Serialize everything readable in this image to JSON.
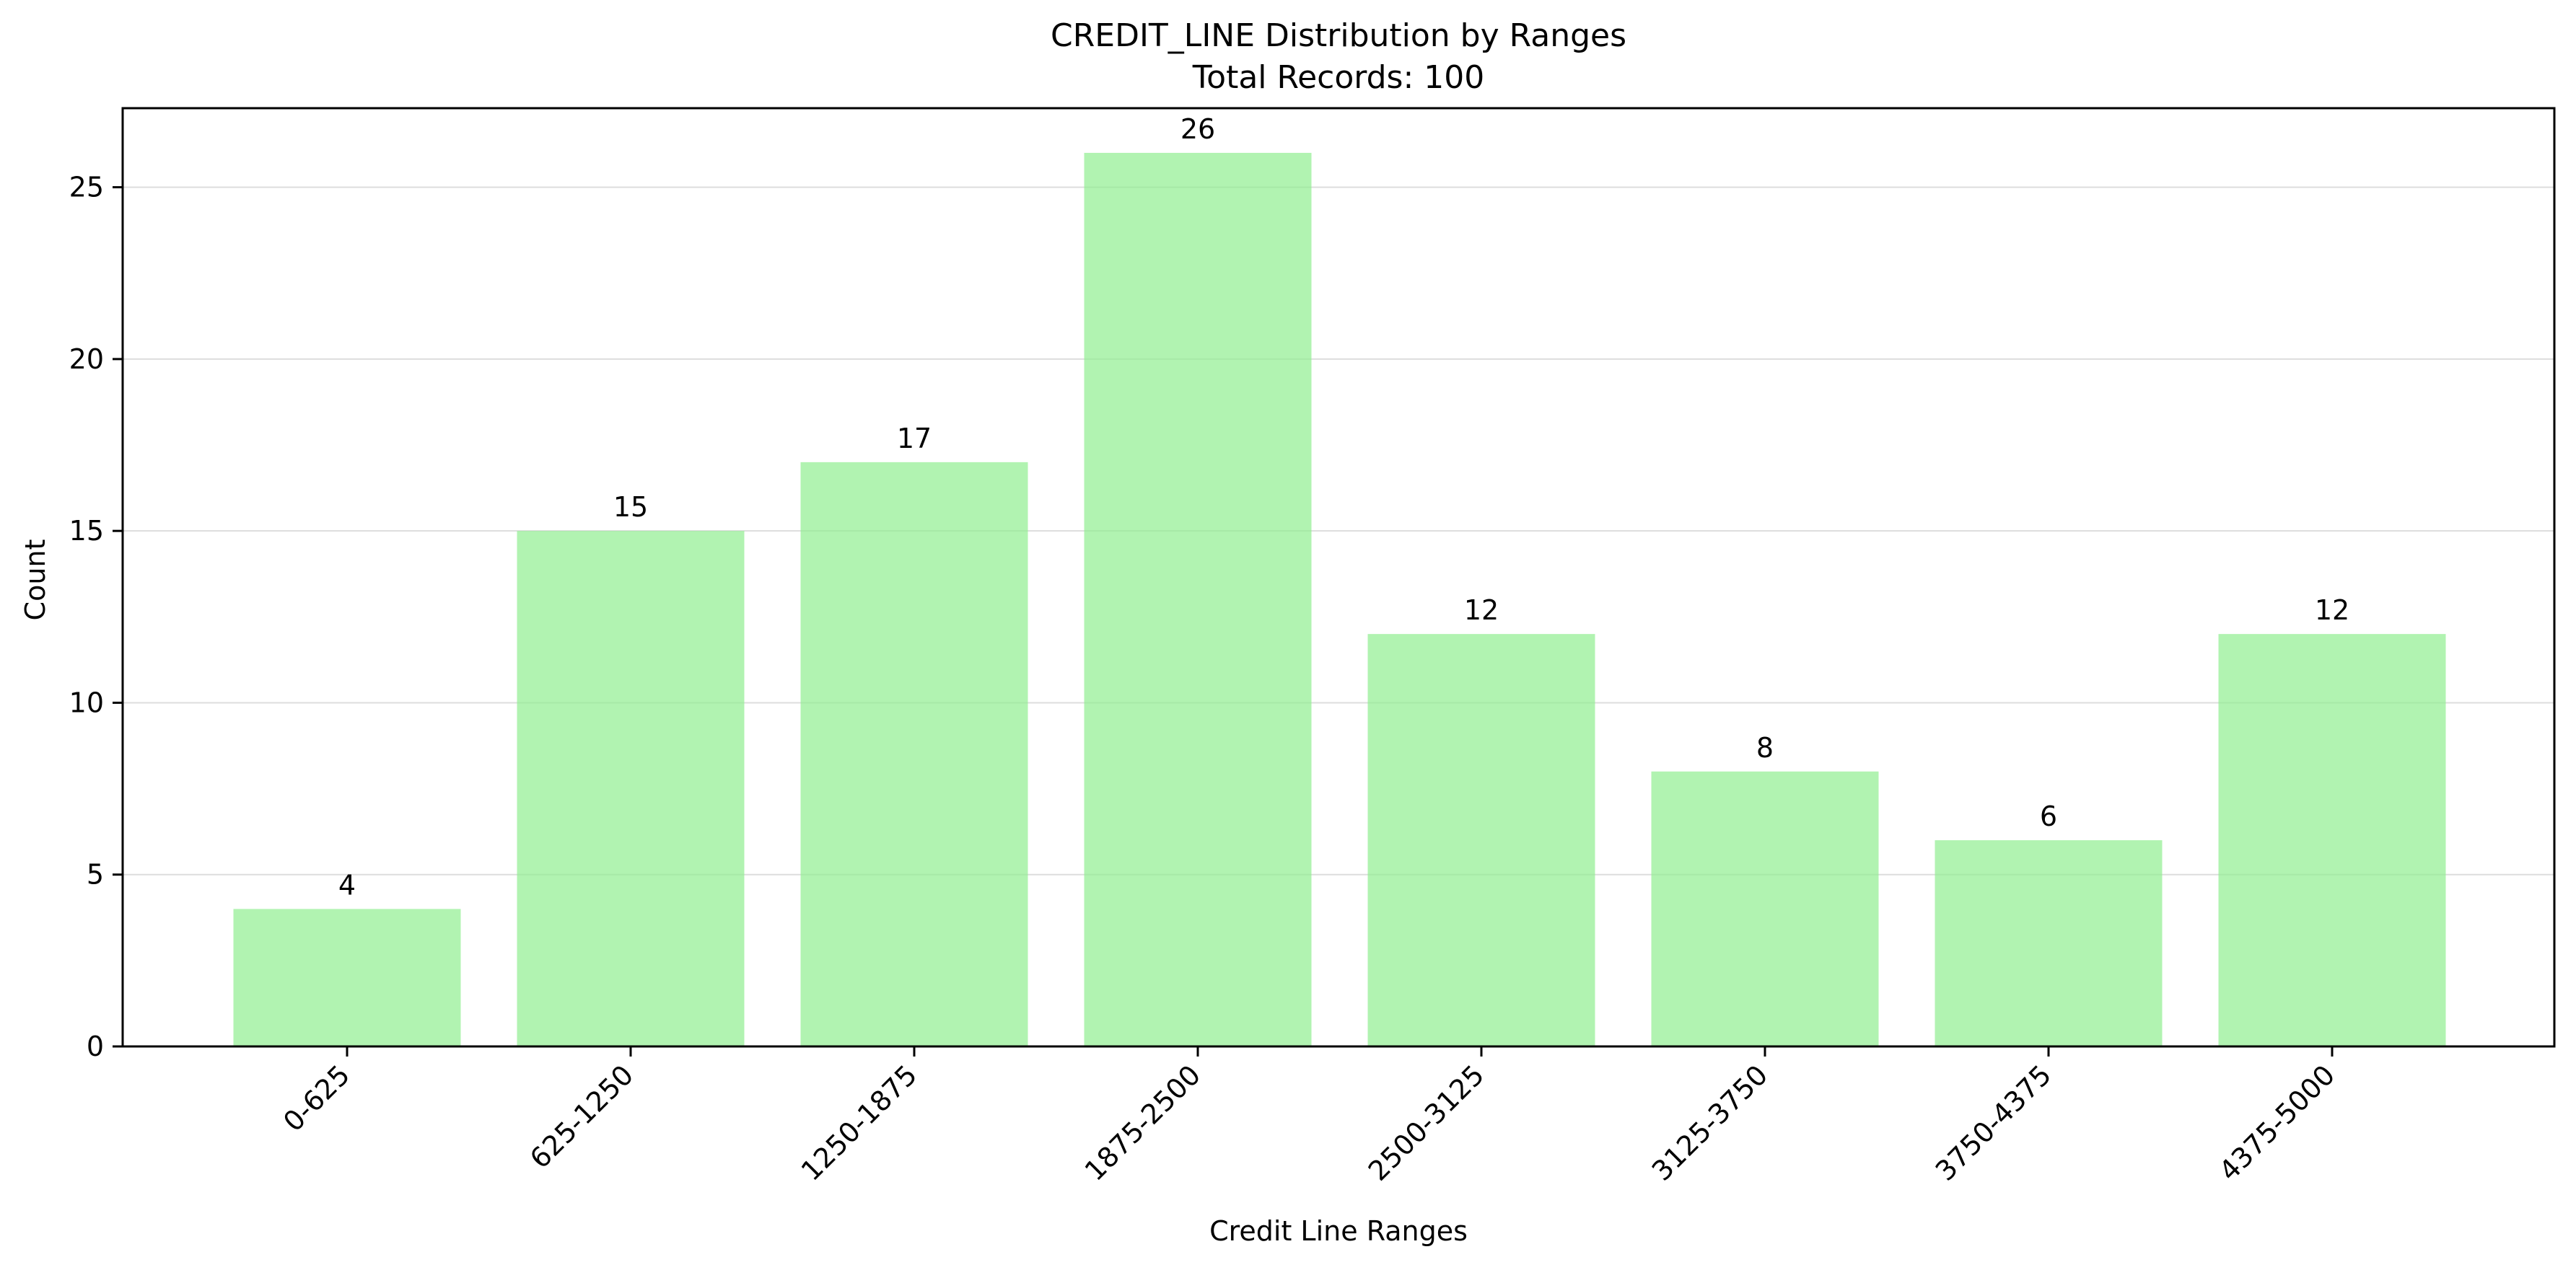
{
  "chart_data": {
    "type": "bar",
    "title": "CREDIT_LINE Distribution by Ranges",
    "subtitle": "Total Records: 100",
    "xlabel": "Credit Line Ranges",
    "ylabel": "Count",
    "categories": [
      "0-625",
      "625-1250",
      "1250-1875",
      "1875-2500",
      "2500-3125",
      "3125-3750",
      "3750-4375",
      "4375-5000"
    ],
    "values": [
      4,
      15,
      17,
      26,
      12,
      8,
      6,
      12
    ],
    "ylim": [
      0,
      27.3
    ],
    "yticks": [
      0,
      5,
      10,
      15,
      20,
      25
    ],
    "grid": "horizontal",
    "colors": {
      "bar": "#90ee90",
      "grid": "#dddddd",
      "axis": "#000000"
    }
  }
}
